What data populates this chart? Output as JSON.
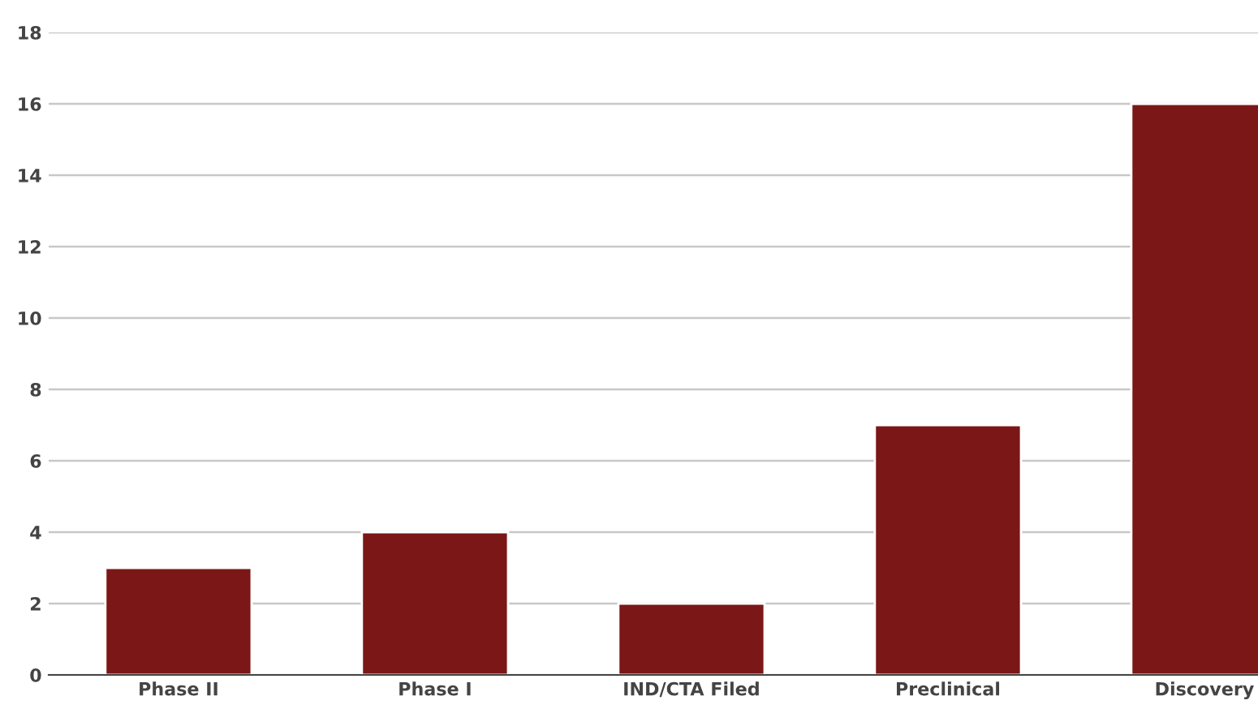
{
  "chart_data": {
    "type": "bar",
    "categories": [
      "Phase II",
      "Phase I",
      "IND/CTA Filed",
      "Preclinical",
      "Discovery"
    ],
    "values": [
      3,
      4,
      2,
      7,
      16
    ],
    "color": "#7b1716",
    "ylim": [
      0,
      18
    ],
    "yticks": [
      0,
      2,
      4,
      6,
      8,
      10,
      12,
      14,
      16,
      18
    ],
    "grid": "y"
  }
}
